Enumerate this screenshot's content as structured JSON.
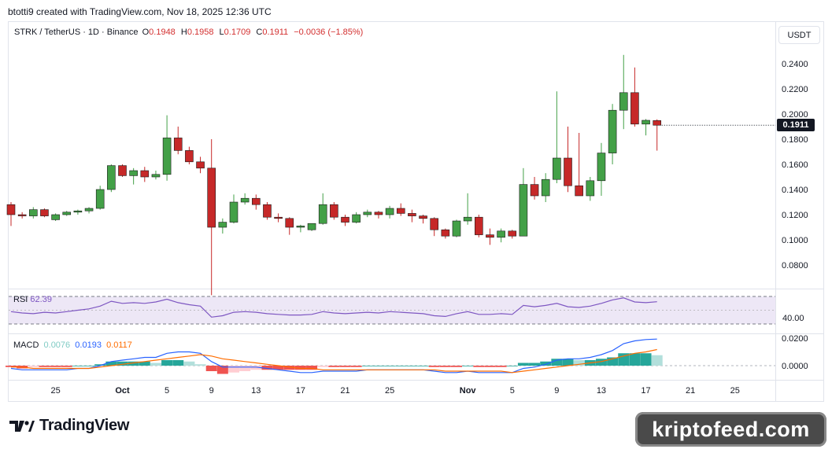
{
  "header": {
    "text": "btotti9 created with TradingView.com, Nov 18, 2025 12:36 UTC"
  },
  "legend": {
    "symbol": "STRK / TetherUS · 1D · Binance",
    "o_label": "O",
    "o": "0.1948",
    "h_label": "H",
    "h": "0.1958",
    "l_label": "L",
    "l": "0.1709",
    "c_label": "C",
    "c": "0.1911",
    "change": "−0.0036 (−1.85%)"
  },
  "price_scale": {
    "currency": "USDT",
    "last_price": "0.1911",
    "ticks": [
      "0.2400",
      "0.2200",
      "0.2000",
      "0.1800",
      "0.1600",
      "0.1400",
      "0.1200",
      "0.1000",
      "0.0800"
    ]
  },
  "rsi": {
    "label": "RSI",
    "value": "62.39",
    "level_label": "40.00"
  },
  "macd": {
    "label": "MACD",
    "hist": "0.0076",
    "macd": "0.0193",
    "signal": "0.0117",
    "ticks": [
      "0.0200",
      "0.0000"
    ]
  },
  "time_axis": {
    "labels": [
      "25",
      "Oct",
      "5",
      "9",
      "13",
      "17",
      "21",
      "25",
      "Nov",
      "5",
      "9",
      "13",
      "17",
      "21",
      "25"
    ]
  },
  "branding": {
    "logo_text": "TradingView",
    "watermark": "kriptofeed.com"
  },
  "colors": {
    "up": "#43a047",
    "down": "#c62828",
    "rsi": "#7e57c2",
    "rsi_band": "#ede7f6",
    "macd_line": "#2962ff",
    "signal_line": "#ff6d00",
    "hist_up_strong": "#26a69a",
    "hist_up_weak": "#b2dfdb",
    "hist_down_strong": "#ef5350",
    "hist_down_weak": "#ffcdd2"
  },
  "chart_data": {
    "type": "candlestick",
    "dates": [
      "09-21",
      "09-22",
      "09-23",
      "09-24",
      "09-25",
      "09-26",
      "09-27",
      "09-28",
      "09-29",
      "09-30",
      "10-01",
      "10-02",
      "10-03",
      "10-04",
      "10-05",
      "10-06",
      "10-07",
      "10-08",
      "10-09",
      "10-10",
      "10-11",
      "10-12",
      "10-13",
      "10-14",
      "10-15",
      "10-16",
      "10-17",
      "10-18",
      "10-19",
      "10-20",
      "10-21",
      "10-22",
      "10-23",
      "10-24",
      "10-25",
      "10-26",
      "10-27",
      "10-28",
      "10-29",
      "10-30",
      "10-31",
      "11-01",
      "11-02",
      "11-03",
      "11-04",
      "11-05",
      "11-06",
      "11-07",
      "11-08",
      "11-09",
      "11-10",
      "11-11",
      "11-12",
      "11-13",
      "11-14",
      "11-15",
      "11-16",
      "11-17",
      "11-18"
    ],
    "ohlc": [
      [
        0.128,
        0.13,
        0.111,
        0.12
      ],
      [
        0.12,
        0.122,
        0.117,
        0.119
      ],
      [
        0.119,
        0.126,
        0.117,
        0.124
      ],
      [
        0.124,
        0.125,
        0.118,
        0.119
      ],
      [
        0.116,
        0.121,
        0.115,
        0.12
      ],
      [
        0.12,
        0.123,
        0.119,
        0.122
      ],
      [
        0.122,
        0.124,
        0.12,
        0.123
      ],
      [
        0.123,
        0.126,
        0.121,
        0.125
      ],
      [
        0.125,
        0.143,
        0.124,
        0.14
      ],
      [
        0.14,
        0.16,
        0.138,
        0.159
      ],
      [
        0.159,
        0.16,
        0.15,
        0.151
      ],
      [
        0.151,
        0.157,
        0.144,
        0.155
      ],
      [
        0.155,
        0.158,
        0.146,
        0.15
      ],
      [
        0.15,
        0.155,
        0.148,
        0.152
      ],
      [
        0.152,
        0.199,
        0.147,
        0.181
      ],
      [
        0.181,
        0.19,
        0.168,
        0.171
      ],
      [
        0.171,
        0.174,
        0.16,
        0.162
      ],
      [
        0.162,
        0.166,
        0.153,
        0.157
      ],
      [
        0.157,
        0.18,
        0.056,
        0.11
      ],
      [
        0.11,
        0.117,
        0.105,
        0.114
      ],
      [
        0.114,
        0.136,
        0.113,
        0.13
      ],
      [
        0.13,
        0.137,
        0.128,
        0.133
      ],
      [
        0.133,
        0.136,
        0.124,
        0.128
      ],
      [
        0.128,
        0.13,
        0.116,
        0.118
      ],
      [
        0.118,
        0.121,
        0.114,
        0.117
      ],
      [
        0.117,
        0.118,
        0.104,
        0.11
      ],
      [
        0.11,
        0.112,
        0.106,
        0.111
      ],
      [
        0.108,
        0.113,
        0.107,
        0.113
      ],
      [
        0.113,
        0.137,
        0.112,
        0.128
      ],
      [
        0.128,
        0.13,
        0.116,
        0.118
      ],
      [
        0.118,
        0.12,
        0.111,
        0.114
      ],
      [
        0.114,
        0.122,
        0.113,
        0.12
      ],
      [
        0.12,
        0.124,
        0.118,
        0.122
      ],
      [
        0.122,
        0.123,
        0.117,
        0.12
      ],
      [
        0.12,
        0.127,
        0.117,
        0.125
      ],
      [
        0.125,
        0.129,
        0.119,
        0.121
      ],
      [
        0.121,
        0.124,
        0.114,
        0.119
      ],
      [
        0.119,
        0.12,
        0.113,
        0.117
      ],
      [
        0.117,
        0.118,
        0.103,
        0.108
      ],
      [
        0.108,
        0.109,
        0.101,
        0.103
      ],
      [
        0.103,
        0.116,
        0.102,
        0.115
      ],
      [
        0.115,
        0.137,
        0.112,
        0.118
      ],
      [
        0.118,
        0.12,
        0.102,
        0.104
      ],
      [
        0.104,
        0.109,
        0.096,
        0.102
      ],
      [
        0.102,
        0.109,
        0.098,
        0.107
      ],
      [
        0.107,
        0.108,
        0.101,
        0.103
      ],
      [
        0.103,
        0.157,
        0.103,
        0.144
      ],
      [
        0.144,
        0.15,
        0.132,
        0.135
      ],
      [
        0.135,
        0.153,
        0.13,
        0.148
      ],
      [
        0.148,
        0.218,
        0.145,
        0.165
      ],
      [
        0.165,
        0.19,
        0.138,
        0.143
      ],
      [
        0.143,
        0.185,
        0.135,
        0.135
      ],
      [
        0.135,
        0.15,
        0.131,
        0.147
      ],
      [
        0.147,
        0.177,
        0.135,
        0.169
      ],
      [
        0.169,
        0.208,
        0.16,
        0.203
      ],
      [
        0.203,
        0.247,
        0.188,
        0.217
      ],
      [
        0.217,
        0.237,
        0.19,
        0.192
      ],
      [
        0.192,
        0.196,
        0.183,
        0.195
      ],
      [
        0.1948,
        0.1958,
        0.1709,
        0.1911
      ]
    ],
    "rsi": [
      48,
      46,
      45,
      47,
      46,
      48,
      50,
      52,
      56,
      63,
      60,
      61,
      60,
      62,
      66,
      61,
      58,
      56,
      40,
      42,
      47,
      48,
      47,
      45,
      44,
      43,
      43,
      44,
      48,
      46,
      45,
      46,
      47,
      46,
      48,
      47,
      46,
      45,
      42,
      41,
      45,
      48,
      44,
      44,
      45,
      44,
      57,
      55,
      57,
      60,
      55,
      54,
      56,
      60,
      65,
      68,
      62,
      61,
      62.39
    ],
    "macd_line": [
      -0.002,
      -0.003,
      -0.003,
      -0.003,
      -0.003,
      -0.003,
      -0.002,
      -0.002,
      0.0,
      0.003,
      0.004,
      0.005,
      0.006,
      0.006,
      0.009,
      0.01,
      0.01,
      0.009,
      0.003,
      -0.001,
      -0.001,
      -0.001,
      -0.001,
      -0.002,
      -0.003,
      -0.004,
      -0.005,
      -0.005,
      -0.004,
      -0.004,
      -0.004,
      -0.004,
      -0.003,
      -0.003,
      -0.003,
      -0.003,
      -0.003,
      -0.003,
      -0.004,
      -0.005,
      -0.005,
      -0.004,
      -0.005,
      -0.005,
      -0.005,
      -0.005,
      -0.002,
      -0.001,
      0.001,
      0.004,
      0.005,
      0.005,
      0.006,
      0.008,
      0.011,
      0.016,
      0.018,
      0.019,
      0.0193
    ],
    "signal_line": [
      -0.001,
      -0.001,
      -0.002,
      -0.002,
      -0.002,
      -0.002,
      -0.002,
      -0.002,
      -0.001,
      0.0,
      0.001,
      0.002,
      0.003,
      0.004,
      0.005,
      0.006,
      0.007,
      0.008,
      0.007,
      0.005,
      0.004,
      0.003,
      0.002,
      0.001,
      0.0,
      -0.001,
      -0.002,
      -0.002,
      -0.003,
      -0.003,
      -0.003,
      -0.003,
      -0.003,
      -0.003,
      -0.003,
      -0.003,
      -0.003,
      -0.003,
      -0.003,
      -0.004,
      -0.004,
      -0.004,
      -0.004,
      -0.004,
      -0.004,
      -0.005,
      -0.004,
      -0.003,
      -0.002,
      -0.001,
      0.0,
      0.001,
      0.002,
      0.003,
      0.005,
      0.007,
      0.009,
      0.01,
      0.0117
    ],
    "macd_hist": [
      -0.001,
      -0.002,
      -0.001,
      -0.001,
      -0.001,
      -0.001,
      0.0,
      0.0,
      0.001,
      0.003,
      0.003,
      0.003,
      0.003,
      0.002,
      0.004,
      0.004,
      0.003,
      0.001,
      -0.004,
      -0.006,
      -0.005,
      -0.004,
      -0.003,
      -0.003,
      -0.003,
      -0.003,
      -0.003,
      -0.003,
      -0.001,
      -0.001,
      -0.001,
      -0.001,
      0.0,
      0.0,
      0.0,
      0.0,
      0.0,
      0.0,
      -0.001,
      -0.001,
      -0.001,
      0.0,
      -0.001,
      -0.001,
      -0.001,
      0.0,
      0.002,
      0.002,
      0.003,
      0.005,
      0.005,
      0.004,
      0.004,
      0.005,
      0.006,
      0.009,
      0.009,
      0.009,
      0.0076
    ],
    "price_ylim": [
      0.07,
      0.25
    ],
    "rsi_levels": [
      70,
      30
    ]
  }
}
